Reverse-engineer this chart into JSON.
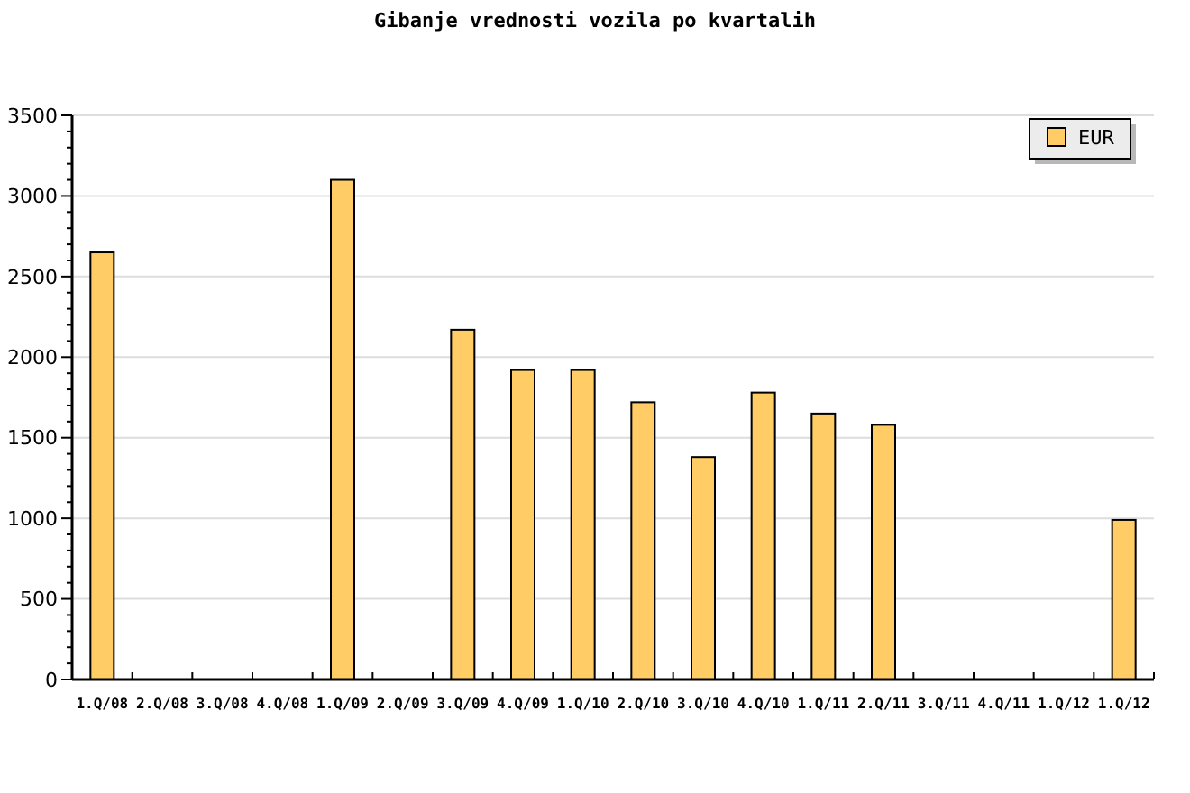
{
  "chart_data": {
    "type": "bar",
    "title": "Gibanje vrednosti vozila po kvartalih",
    "categories": [
      "1.Q/08",
      "2.Q/08",
      "3.Q/08",
      "4.Q/08",
      "1.Q/09",
      "2.Q/09",
      "3.Q/09",
      "4.Q/09",
      "1.Q/10",
      "2.Q/10",
      "3.Q/10",
      "4.Q/10",
      "1.Q/11",
      "2.Q/11",
      "3.Q/11",
      "4.Q/11",
      "1.Q/12",
      "1.Q/12"
    ],
    "series": [
      {
        "name": "EUR",
        "color": "#ffcc66",
        "values": [
          2650,
          null,
          null,
          null,
          3100,
          null,
          2170,
          1920,
          1920,
          1720,
          1380,
          1780,
          1650,
          1580,
          null,
          null,
          null,
          990
        ]
      }
    ],
    "ylim": [
      0,
      3500
    ],
    "yticks": [
      0,
      {
        "value": 100,
        "label": null
      },
      {
        "value": 200,
        "label": null
      },
      {
        "value": 300,
        "label": null
      },
      {
        "value": 400,
        "label": null
      },
      500,
      {
        "value": 600,
        "label": null
      },
      {
        "value": 700,
        "label": null
      },
      {
        "value": 800,
        "label": null
      },
      {
        "value": 900,
        "label": null
      },
      1000,
      {
        "value": 1100,
        "label": null
      },
      {
        "value": 1200,
        "label": null
      },
      {
        "value": 1300,
        "label": null
      },
      {
        "value": 1400,
        "label": null
      },
      1500,
      {
        "value": 1600,
        "label": null
      },
      {
        "value": 1700,
        "label": null
      },
      {
        "value": 1800,
        "label": null
      },
      {
        "value": 1900,
        "label": null
      },
      2000,
      {
        "value": 2100,
        "label": null
      },
      {
        "value": 2200,
        "label": null
      },
      {
        "value": 2300,
        "label": null
      },
      {
        "value": 2400,
        "label": null
      },
      2500,
      {
        "value": 2600,
        "label": null
      },
      {
        "value": 2700,
        "label": null
      },
      {
        "value": 2800,
        "label": null
      },
      {
        "value": 2900,
        "label": null
      },
      3000,
      {
        "value": 3100,
        "label": null
      },
      {
        "value": 3200,
        "label": null
      },
      {
        "value": 3300,
        "label": null
      },
      {
        "value": 3400,
        "label": null
      },
      3500
    ],
    "grid": "y",
    "legend": "top right"
  }
}
